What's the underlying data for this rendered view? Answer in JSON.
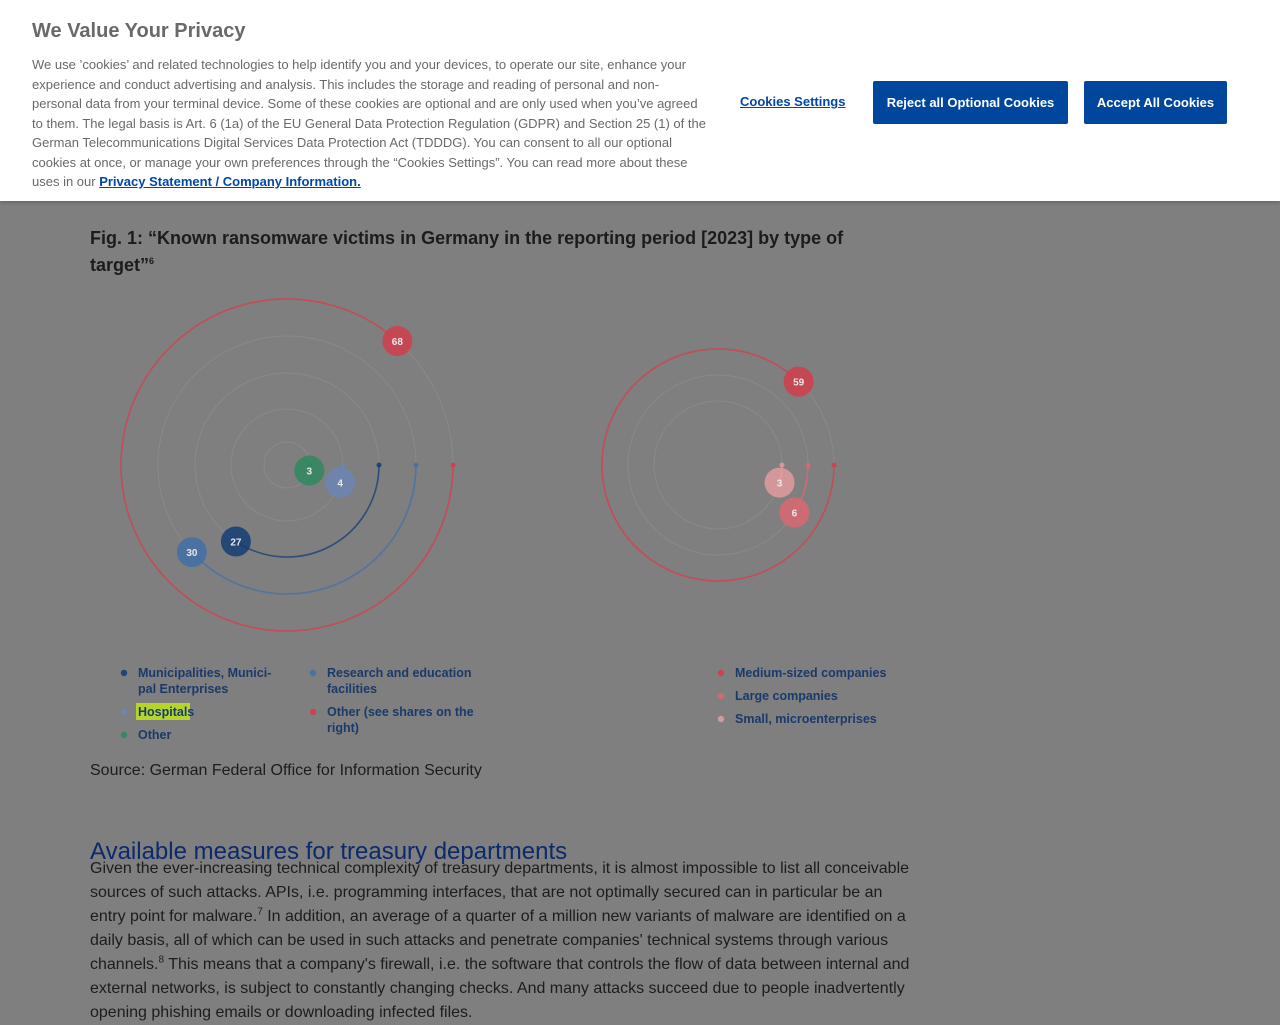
{
  "banner": {
    "title": "We Value Your Privacy",
    "text": "We use ’cookies’ and related technologies to help identify you and your devices, to operate our site, enhance your experience and conduct advertising and analysis. This includes the storage and reading of personal and non-personal data from your terminal device. Some of these cookies are optional and are only used when you’ve agreed to them. The legal basis is Art. 6 (1a) of the EU General Data Protection Regulation (GDPR) and Section 25 (1) of the German Telecommunications Digital Services Data Protection Act (TDDDG). You can consent to all our optional cookies at once, or manage your own preferences through the “Cookies Settings”. You can read more about these uses in our ",
    "link_label": "Privacy Statement / Company Information.",
    "settings_label": "Cookies Settings",
    "reject_label": "Reject all Optional Cookies",
    "accept_label": "Accept All Cookies"
  },
  "figure": {
    "title": "Fig. 1: “Known ransomware victims in Germany in the reporting period [2023] by type of target”",
    "title_sup": "6",
    "source": "Source: German Federal Office for Information Security"
  },
  "chart_data": [
    {
      "type": "radial",
      "series": [
        {
          "name": "Municipalities, Munici-pal Enterprises",
          "value": 27,
          "color": "#0d3b73"
        },
        {
          "name": "Research and education facilities",
          "value": 30,
          "color": "#3f6ea9"
        },
        {
          "name": "Hospitals",
          "value": 4,
          "color": "#6a86b8"
        },
        {
          "name": "Other",
          "value": 3,
          "color": "#2a8a5c"
        },
        {
          "name": "Other (see shares on the right)",
          "value": 68,
          "color": "#d63a48"
        }
      ],
      "legend": [
        {
          "label": "Municipalities, Munici-",
          "label2": "pal Enterprises",
          "color": "#0d3b73"
        },
        {
          "label": "Research and education",
          "label2": "facilities",
          "color": "#3f6ea9"
        },
        {
          "label": "Hospitals",
          "label2": "",
          "color": "#6a86b8"
        },
        {
          "label": "Other (see shares on the",
          "label2": "right)",
          "color": "#d63a48"
        },
        {
          "label": "Other",
          "label2": "",
          "color": "#2a8a5c"
        }
      ]
    },
    {
      "type": "radial",
      "series": [
        {
          "name": "Medium-sized companies",
          "value": 59,
          "color": "#d63a48"
        },
        {
          "name": "Large companies",
          "value": 6,
          "color": "#e06670"
        },
        {
          "name": "Small, microenterprises",
          "value": 3,
          "color": "#e89ca0"
        }
      ],
      "legend": [
        {
          "label": "Medium-sized companies",
          "color": "#d63a48"
        },
        {
          "label": "Large companies",
          "color": "#e06670"
        },
        {
          "label": "Small, microenterprises",
          "color": "#e89ca0"
        }
      ]
    }
  ],
  "section": {
    "title": "Available measures for treasury departments",
    "p1": "Given the ever-increasing technical complexity of treasury departments, it is almost impossible to list all conceivable sources of such attacks. APIs, i.e. programming interfaces, that are not optimally secured can in particular be an entry point for malware.",
    "sup1": "7",
    "p2": " In addition, an average of a quarter of a million new variants of malware are identified on a daily basis, all of which can be used in such attacks and penetrate companies' technical systems through various channels.",
    "sup2": "8",
    "p3": " This means that a company's firewall, i.e. the software that controls the flow of data between internal and external networks, is subject to constantly changing checks. And many attacks succeed due to people inadvertently opening phishing emails or downloading infected files."
  }
}
